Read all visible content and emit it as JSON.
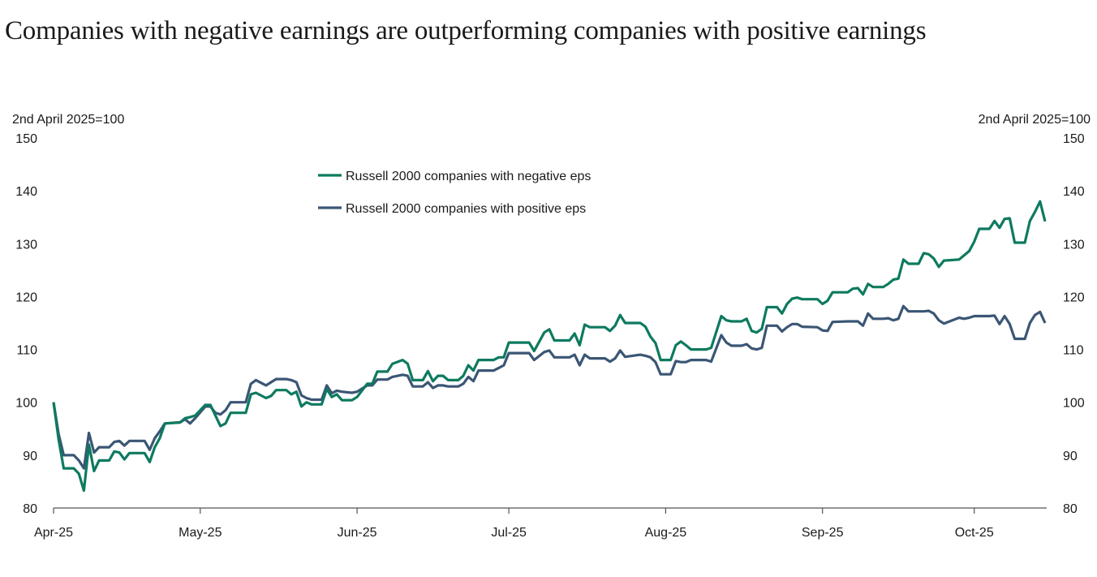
{
  "chart_data": {
    "type": "line",
    "title": "Companies with negative earnings are outperforming companies with positive earnings",
    "ylabel_left": "2nd April 2025=100",
    "ylabel_right": "2nd April 2025=100",
    "ylim": [
      80,
      150
    ],
    "yticks": [
      80,
      90,
      100,
      110,
      120,
      130,
      140,
      150
    ],
    "xlim": [
      "2025-04-02",
      "2025-10-15"
    ],
    "xticks": [
      {
        "date": "2025-04-02",
        "label": "Apr-25"
      },
      {
        "date": "2025-05-01",
        "label": "May-25"
      },
      {
        "date": "2025-06-01",
        "label": "Jun-25"
      },
      {
        "date": "2025-07-01",
        "label": "Jul-25"
      },
      {
        "date": "2025-08-01",
        "label": "Aug-25"
      },
      {
        "date": "2025-09-01",
        "label": "Sep-25"
      },
      {
        "date": "2025-10-01",
        "label": "Oct-25"
      }
    ],
    "grid": false,
    "legend_position": "top-left",
    "x": [
      "2025-04-02",
      "2025-04-03",
      "2025-04-04",
      "2025-04-06",
      "2025-04-07",
      "2025-04-08",
      "2025-04-09",
      "2025-04-10",
      "2025-04-11",
      "2025-04-13",
      "2025-04-14",
      "2025-04-15",
      "2025-04-16",
      "2025-04-17",
      "2025-04-20",
      "2025-04-21",
      "2025-04-22",
      "2025-04-23",
      "2025-04-24",
      "2025-04-27",
      "2025-04-28",
      "2025-04-29",
      "2025-04-30",
      "2025-05-02",
      "2025-05-03",
      "2025-05-04",
      "2025-05-05",
      "2025-05-06",
      "2025-05-07",
      "2025-05-10",
      "2025-05-11",
      "2025-05-12",
      "2025-05-14",
      "2025-05-15",
      "2025-05-16",
      "2025-05-18",
      "2025-05-19",
      "2025-05-20",
      "2025-05-21",
      "2025-05-22",
      "2025-05-23",
      "2025-05-25",
      "2025-05-26",
      "2025-05-27",
      "2025-05-28",
      "2025-05-29",
      "2025-05-31",
      "2025-06-01",
      "2025-06-03",
      "2025-06-04",
      "2025-06-05",
      "2025-06-07",
      "2025-06-08",
      "2025-06-10",
      "2025-06-11",
      "2025-06-12",
      "2025-06-14",
      "2025-06-15",
      "2025-06-16",
      "2025-06-17",
      "2025-06-18",
      "2025-06-19",
      "2025-06-21",
      "2025-06-22",
      "2025-06-23",
      "2025-06-24",
      "2025-06-25",
      "2025-06-28",
      "2025-06-29",
      "2025-06-30",
      "2025-07-01",
      "2025-07-05",
      "2025-07-06",
      "2025-07-08",
      "2025-07-09",
      "2025-07-10",
      "2025-07-13",
      "2025-07-14",
      "2025-07-15",
      "2025-07-16",
      "2025-07-17",
      "2025-07-20",
      "2025-07-21",
      "2025-07-22",
      "2025-07-23",
      "2025-07-24",
      "2025-07-27",
      "2025-07-28",
      "2025-07-29",
      "2025-07-30",
      "2025-07-31",
      "2025-08-02",
      "2025-08-03",
      "2025-08-04",
      "2025-08-05",
      "2025-08-06",
      "2025-08-09",
      "2025-08-10",
      "2025-08-12",
      "2025-08-13",
      "2025-08-14",
      "2025-08-16",
      "2025-08-17",
      "2025-08-18",
      "2025-08-19",
      "2025-08-20",
      "2025-08-21",
      "2025-08-23",
      "2025-08-24",
      "2025-08-25",
      "2025-08-26",
      "2025-08-27",
      "2025-08-28",
      "2025-08-31",
      "2025-09-01",
      "2025-09-02",
      "2025-09-03",
      "2025-09-06",
      "2025-09-07",
      "2025-09-08",
      "2025-09-09",
      "2025-09-10",
      "2025-09-11",
      "2025-09-13",
      "2025-09-14",
      "2025-09-15",
      "2025-09-16",
      "2025-09-17",
      "2025-09-18",
      "2025-09-20",
      "2025-09-21",
      "2025-09-22",
      "2025-09-23",
      "2025-09-24",
      "2025-09-25",
      "2025-09-28",
      "2025-09-29",
      "2025-09-30",
      "2025-10-01",
      "2025-10-02",
      "2025-10-04",
      "2025-10-05",
      "2025-10-06",
      "2025-10-07",
      "2025-10-08",
      "2025-10-09",
      "2025-10-11",
      "2025-10-12",
      "2025-10-13",
      "2025-10-14",
      "2025-10-15"
    ],
    "series": [
      {
        "name": "Russell 2000 companies with negative eps",
        "color": "#0d7a5f",
        "values": [
          100,
          93,
          87.5,
          87.5,
          86.5,
          83.3,
          92,
          87,
          89,
          89,
          90.7,
          90.5,
          89.2,
          90.4,
          90.4,
          88.7,
          91.5,
          93.2,
          96,
          96.2,
          97,
          97.2,
          97.5,
          99.5,
          99.5,
          97.5,
          95.5,
          96,
          98,
          98,
          101.5,
          101.8,
          100.8,
          101.2,
          102.3,
          102.3,
          101.5,
          102,
          99.2,
          100,
          99.6,
          99.6,
          102.5,
          101,
          101.5,
          100.4,
          100.4,
          101,
          103.5,
          103.5,
          105.8,
          105.8,
          107.3,
          108,
          107.3,
          104.2,
          104.2,
          105.9,
          104,
          105,
          105,
          104.2,
          104.2,
          105,
          107,
          106,
          108,
          108,
          108.5,
          108.5,
          111.3,
          111.3,
          109.7,
          113.2,
          113.8,
          111.7,
          111.7,
          113,
          110.8,
          114.7,
          114.2,
          114.2,
          113.5,
          114.5,
          116.5,
          115,
          115,
          114.3,
          112.4,
          111.2,
          108,
          108,
          110.8,
          111.5,
          110.8,
          110,
          110,
          110.3,
          116.3,
          115.5,
          115.3,
          115.3,
          115.8,
          113.5,
          113.2,
          113.9,
          118,
          118,
          116.8,
          118.6,
          119.6,
          119.8,
          119.5,
          119.5,
          118.6,
          119.2,
          120.8,
          120.8,
          121.5,
          121.6,
          120.4,
          122.4,
          121.8,
          121.8,
          122.4,
          123.2,
          123.4,
          127,
          126.2,
          126.2,
          128.2,
          128,
          127.2,
          125.6,
          126.8,
          127,
          127.8,
          128.6,
          130.4,
          132.8,
          132.8,
          134.3,
          133,
          134.7,
          134.8,
          130.2,
          130.2,
          134.3,
          136,
          138,
          134.2
        ]
      },
      {
        "name": "Russell 2000 companies with positive eps",
        "color": "#3b5675",
        "values": [
          100,
          94,
          90,
          90,
          89,
          87.5,
          94.2,
          90.5,
          91.5,
          91.5,
          92.5,
          92.7,
          91.8,
          92.7,
          92.7,
          91,
          93.2,
          94.5,
          96,
          96.2,
          96.8,
          96,
          97,
          99.2,
          99.2,
          98,
          97.7,
          98.5,
          100,
          100,
          103.5,
          104.2,
          103.2,
          103.8,
          104.4,
          104.4,
          104.2,
          103.8,
          101.3,
          100.8,
          100.5,
          100.5,
          103.2,
          101.7,
          102.2,
          102,
          101.8,
          102,
          103.2,
          103.2,
          104.3,
          104.3,
          104.8,
          105.2,
          105,
          103,
          103,
          103.8,
          102.7,
          103.2,
          103.2,
          103,
          103,
          103.5,
          104.8,
          104,
          106,
          106,
          106.5,
          107,
          109.3,
          109.3,
          108,
          109.5,
          109.8,
          108.5,
          108.5,
          109,
          107,
          109,
          108.3,
          108.3,
          107.7,
          108.3,
          109.8,
          108.6,
          109,
          108.8,
          108.5,
          107.6,
          105.3,
          105.3,
          107.8,
          107.6,
          107.6,
          108,
          108,
          107.7,
          112.7,
          111.3,
          110.7,
          110.7,
          111,
          110.2,
          110,
          110.3,
          114.5,
          114.5,
          113.4,
          114.2,
          114.8,
          114.8,
          114.3,
          114.2,
          113.6,
          113.5,
          115.2,
          115.3,
          115.3,
          115.3,
          114.5,
          116.8,
          115.8,
          115.8,
          115.9,
          115.5,
          115.8,
          118.2,
          117.2,
          117.2,
          117.2,
          117.3,
          116.8,
          115.5,
          114.9,
          116,
          115.8,
          116,
          116.3,
          116.3,
          116.3,
          116.4,
          114.8,
          116.3,
          114.8,
          112,
          112,
          115,
          116.5,
          117.1,
          115
        ]
      }
    ]
  }
}
